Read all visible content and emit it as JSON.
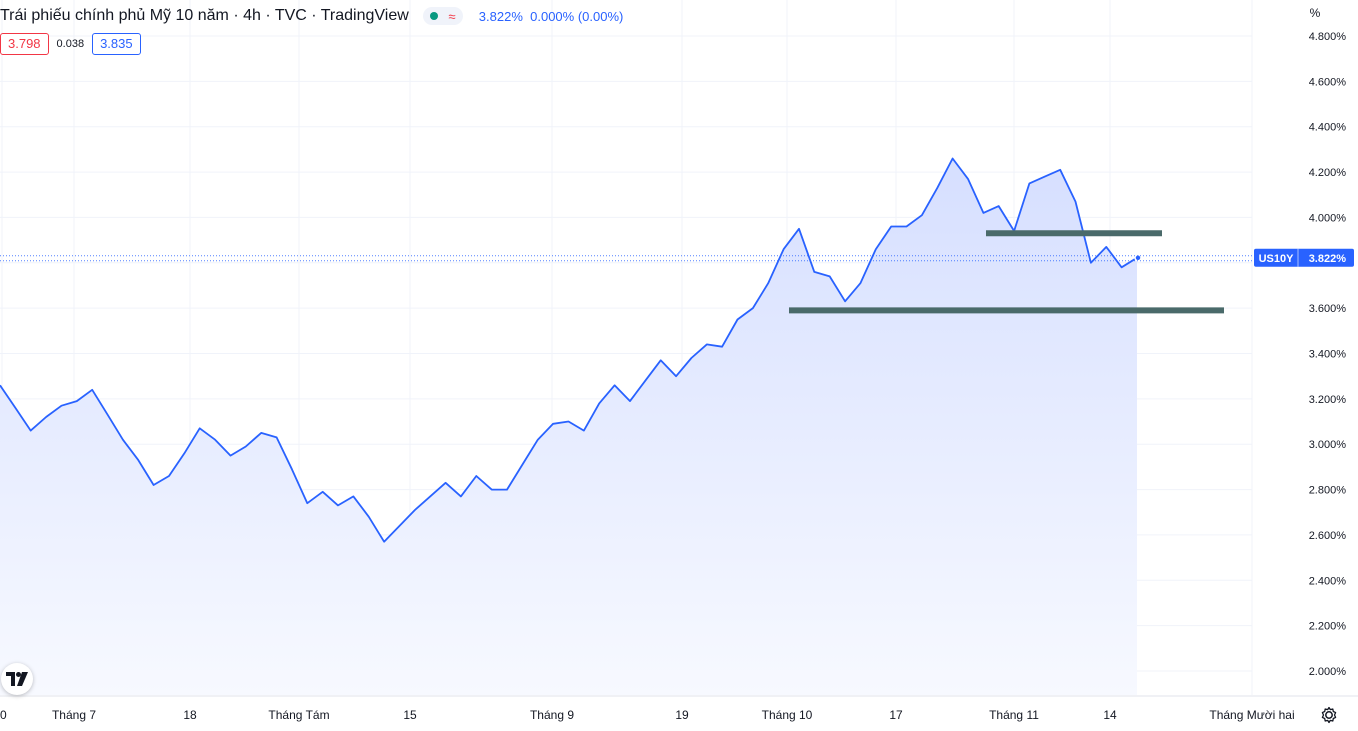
{
  "header": {
    "title": "Trái phiếu chính phủ Mỹ 10 năm · 4h · TVC · TradingView",
    "last_price": "3.822%",
    "change": "0.000% (0.00%)"
  },
  "ohlc_boxes": {
    "left": "3.798",
    "middle": "0.038",
    "right": "3.835"
  },
  "price_scale": {
    "unit": "%",
    "ticks": [
      "4.800%",
      "4.600%",
      "4.400%",
      "4.200%",
      "4.000%",
      "3.600%",
      "3.400%",
      "3.200%",
      "3.000%",
      "2.800%",
      "2.600%",
      "2.400%",
      "2.200%",
      "2.000%"
    ]
  },
  "symbol_tag": {
    "symbol": "US10Y",
    "value": "3.822%"
  },
  "colors": {
    "line": "#2962ff",
    "area_top": "#d6dfff",
    "area_bottom": "#f7f9ff",
    "support_line": "#4a6a6a",
    "down": "#f23645",
    "up": "#089981",
    "grid": "#f0f3fa"
  },
  "icons": {
    "logo": "tradingview-logo-icon",
    "settings": "gear-icon"
  },
  "chart_data": {
    "type": "area",
    "title": "Trái phiếu chính phủ Mỹ 10 năm · 4h · TVC · TradingView",
    "ylabel": "%",
    "ylim": [
      1.9,
      4.88
    ],
    "grid": true,
    "x_ticks": [
      "0",
      "Tháng 7",
      "18",
      "Tháng Tám",
      "15",
      "Tháng 9",
      "19",
      "Tháng 10",
      "17",
      "Tháng 11",
      "14",
      "Tháng Mười hai"
    ],
    "series": [
      {
        "name": "US10Y",
        "values": [
          3.26,
          3.16,
          3.06,
          3.12,
          3.17,
          3.19,
          3.24,
          3.13,
          3.02,
          2.93,
          2.82,
          2.86,
          2.96,
          3.07,
          3.02,
          2.95,
          2.99,
          3.05,
          3.03,
          2.89,
          2.74,
          2.79,
          2.73,
          2.77,
          2.68,
          2.57,
          2.64,
          2.71,
          2.77,
          2.83,
          2.77,
          2.86,
          2.8,
          2.8,
          2.91,
          3.02,
          3.09,
          3.1,
          3.06,
          3.18,
          3.26,
          3.19,
          3.28,
          3.37,
          3.3,
          3.38,
          3.44,
          3.43,
          3.55,
          3.6,
          3.71,
          3.86,
          3.95,
          3.76,
          3.74,
          3.63,
          3.71,
          3.86,
          3.96,
          3.96,
          4.01,
          4.13,
          4.26,
          4.17,
          4.02,
          4.05,
          3.94,
          4.15,
          4.18,
          4.21,
          4.07,
          3.8,
          3.87,
          3.78,
          3.822
        ]
      }
    ],
    "horizontal_levels": [
      {
        "value": 3.93
      },
      {
        "value": 3.59
      }
    ],
    "last_value": 3.822
  }
}
